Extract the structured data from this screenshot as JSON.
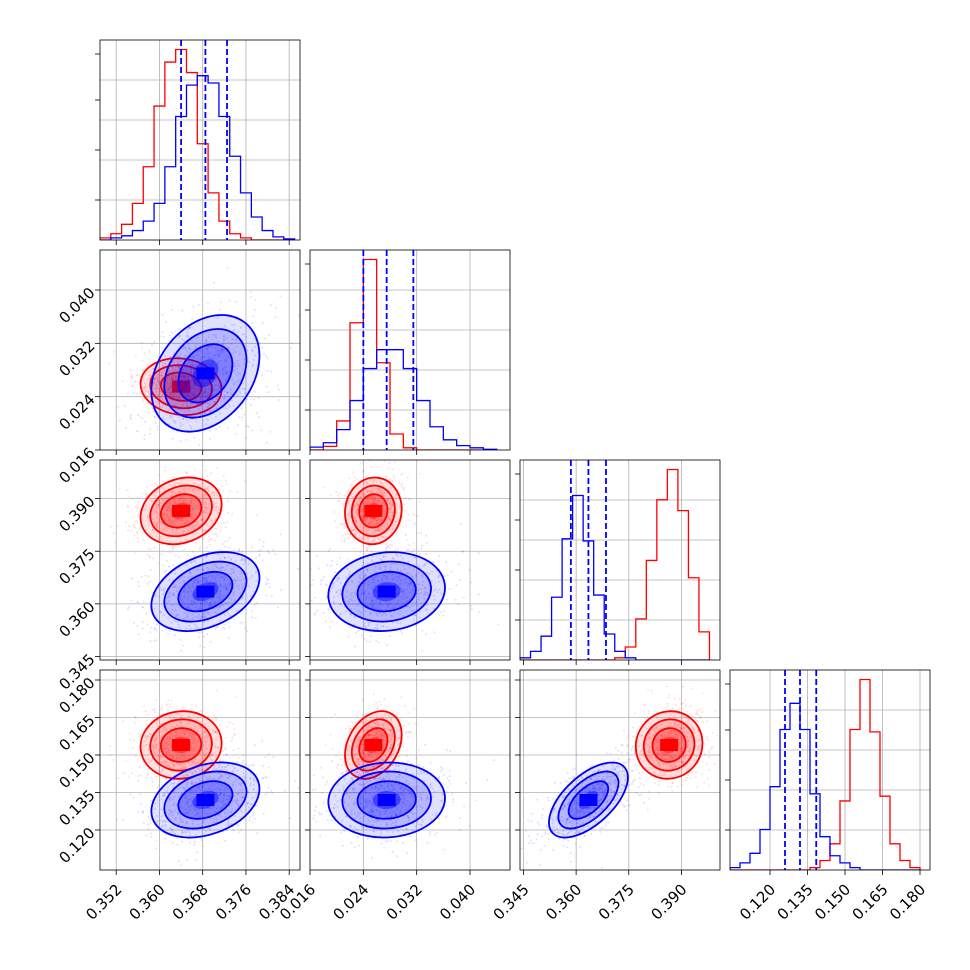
{
  "colors": {
    "red": "#ff0000",
    "blue": "#0000ff",
    "grid": "#b0b0b0"
  },
  "chart_data": {
    "type": "corner",
    "title": "",
    "grid": true,
    "parameters": [
      {
        "index": 0,
        "range": [
          0.349,
          0.386
        ],
        "ticks": [
          "0.352",
          "0.360",
          "0.368",
          "0.376",
          "0.384"
        ]
      },
      {
        "index": 1,
        "range": [
          0.016,
          0.046
        ],
        "ticks": [
          "0.016",
          "0.024",
          "0.032",
          "0.040"
        ]
      },
      {
        "index": 2,
        "range": [
          0.344,
          0.401
        ],
        "ticks": [
          "0.345",
          "0.360",
          "0.375",
          "0.390"
        ]
      },
      {
        "index": 3,
        "range": [
          0.104,
          0.184
        ],
        "ticks": [
          "0.120",
          "0.135",
          "0.150",
          "0.165",
          "0.180"
        ]
      }
    ],
    "series": [
      {
        "color": "red",
        "means": [
          0.364,
          0.0255,
          0.3865,
          0.154
        ],
        "sds": [
          0.003,
          0.0017,
          0.0038,
          0.0054
        ],
        "corr": {
          "0-1": -0.1,
          "0-2": 0.2,
          "1-2": 0.05,
          "0-3": 0.05,
          "1-3": 0.3,
          "2-3": 0.05
        }
      },
      {
        "color": "blue",
        "means": [
          0.3685,
          0.0275,
          0.3635,
          0.132
        ],
        "sds": [
          0.004,
          0.0035,
          0.0045,
          0.006
        ],
        "corr": {
          "0-1": 0.3,
          "0-2": 0.35,
          "1-2": 0.1,
          "0-3": 0.3,
          "1-3": 0.05,
          "2-3": 0.6
        }
      }
    ],
    "quantiles_blue": [
      [
        0.364,
        0.3685,
        0.3725
      ],
      [
        0.024,
        0.0275,
        0.0315
      ],
      [
        0.3585,
        0.3635,
        0.3685
      ],
      [
        0.126,
        0.132,
        0.1385
      ]
    ],
    "histograms": [
      {
        "bins": [
          0.349,
          0.351,
          0.353,
          0.355,
          0.357,
          0.359,
          0.361,
          0.363,
          0.365,
          0.367,
          0.369,
          0.371,
          0.373,
          0.375,
          0.377,
          0.379,
          0.381,
          0.383,
          0.385
        ],
        "red": [
          2,
          6,
          15,
          35,
          70,
          128,
          170,
          182,
          160,
          92,
          45,
          18,
          6,
          2,
          0,
          0,
          0,
          0
        ],
        "blue": [
          0,
          2,
          4,
          9,
          18,
          35,
          70,
          118,
          148,
          157,
          150,
          118,
          80,
          45,
          22,
          9,
          3,
          1
        ]
      },
      {
        "bins": [
          0.016,
          0.018,
          0.02,
          0.022,
          0.024,
          0.026,
          0.028,
          0.03,
          0.032,
          0.034,
          0.036,
          0.038,
          0.04,
          0.042,
          0.044
        ],
        "red": [
          0,
          5,
          40,
          175,
          262,
          120,
          22,
          3,
          0,
          0,
          0,
          0,
          0,
          0
        ],
        "blue": [
          4,
          10,
          28,
          68,
          112,
          138,
          138,
          112,
          68,
          32,
          14,
          6,
          3,
          1
        ]
      },
      {
        "bins": [
          0.344,
          0.347,
          0.35,
          0.353,
          0.356,
          0.359,
          0.362,
          0.365,
          0.368,
          0.371,
          0.374,
          0.377,
          0.38,
          0.383,
          0.386,
          0.389,
          0.392,
          0.395,
          0.398
        ],
        "red": [
          0,
          0,
          0,
          0,
          0,
          0,
          0,
          0,
          0,
          2,
          12,
          38,
          92,
          148,
          176,
          138,
          76,
          26
        ],
        "blue": [
          2,
          8,
          22,
          58,
          112,
          152,
          110,
          60,
          24,
          8,
          2,
          0,
          0,
          0,
          0,
          0,
          0,
          0
        ]
      },
      {
        "bins": [
          0.104,
          0.108,
          0.112,
          0.116,
          0.12,
          0.124,
          0.128,
          0.132,
          0.136,
          0.14,
          0.144,
          0.148,
          0.152,
          0.156,
          0.16,
          0.164,
          0.168,
          0.172,
          0.176,
          0.18
        ],
        "red": [
          0,
          0,
          0,
          0,
          0,
          0,
          0,
          0,
          2,
          8,
          22,
          58,
          118,
          160,
          116,
          62,
          22,
          8,
          2
        ],
        "blue": [
          2,
          6,
          14,
          34,
          70,
          118,
          140,
          118,
          64,
          28,
          12,
          6,
          2,
          0,
          0,
          0,
          0,
          0,
          0
        ]
      }
    ]
  }
}
